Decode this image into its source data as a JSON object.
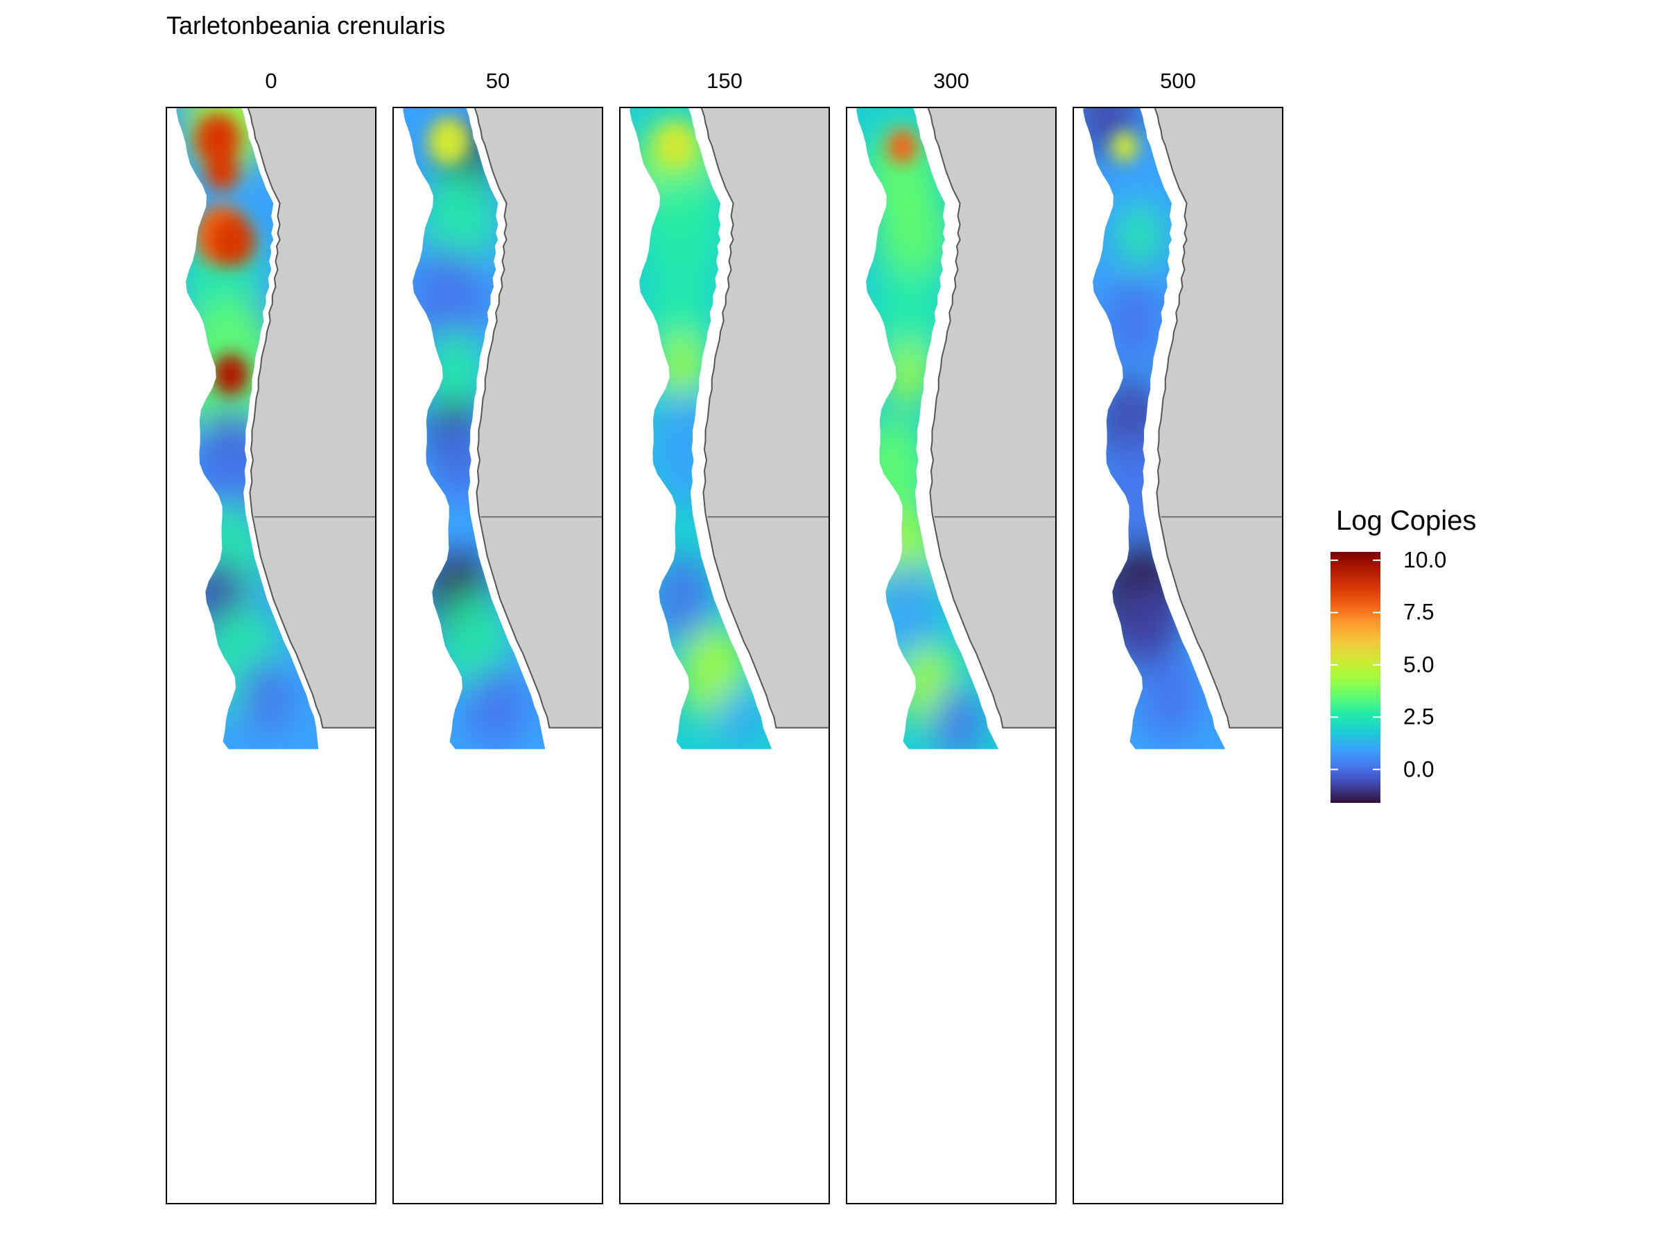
{
  "title": "Tarletonbeania crenularis",
  "panels": [
    {
      "label": "0"
    },
    {
      "label": "50"
    },
    {
      "label": "150"
    },
    {
      "label": "300"
    },
    {
      "label": "500"
    }
  ],
  "legend": {
    "title": "Log Copies",
    "range": [
      -1.6,
      10.4
    ],
    "ticks": [
      {
        "value": 10.0,
        "label": "10.0"
      },
      {
        "value": 7.5,
        "label": "7.5"
      },
      {
        "value": 5.0,
        "label": "5.0"
      },
      {
        "value": 2.5,
        "label": "2.5"
      },
      {
        "value": 0.0,
        "label": "0.0"
      }
    ],
    "palette": "turbo",
    "palette_stops": [
      "#30123b",
      "#4145ab",
      "#4675ed",
      "#39a2fc",
      "#1bcfd4",
      "#24eca6",
      "#61fc6c",
      "#a4fc3b",
      "#d1e834",
      "#f3c63a",
      "#fe9b2d",
      "#f36315",
      "#d93806",
      "#b11901",
      "#7a0403"
    ]
  },
  "colors": {
    "land": "#cccccc",
    "coast": "#555555",
    "frame": "#000000",
    "background": "#ffffff"
  }
}
